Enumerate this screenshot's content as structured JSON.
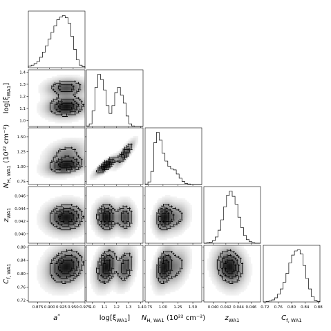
{
  "chart_data": {
    "type": "corner",
    "params": [
      {
        "name": "a*",
        "label_main": "a",
        "label_sup": "*",
        "label_sub": "",
        "label_tail": "",
        "range": [
          0.855,
          0.975
        ],
        "ticks": [
          "0.875",
          "0.900",
          "0.925",
          "0.950",
          "0.975"
        ],
        "tick_values": [
          0.875,
          0.9,
          0.925,
          0.95,
          0.975
        ],
        "hist": [
          0.03,
          0.05,
          0.08,
          0.12,
          0.2,
          0.3,
          0.42,
          0.55,
          0.68,
          0.8,
          0.92,
          0.97,
          1.0,
          0.96,
          0.85,
          0.6,
          0.35,
          0.15,
          0.05,
          0.02
        ],
        "modes": [
          {
            "mu": 0.935,
            "sd": 0.016,
            "w": 1
          }
        ]
      },
      {
        "name": "log[xi_WA1]",
        "label_main": "log[ξ",
        "label_sup": "",
        "label_sub": "WA1",
        "label_tail": "]",
        "range": [
          0.95,
          1.42
        ],
        "ticks": [
          "1.0",
          "1.1",
          "1.2",
          "1.3",
          "1.4"
        ],
        "tick_values": [
          1.0,
          1.1,
          1.2,
          1.3,
          1.4
        ],
        "hist": [
          0.01,
          0.05,
          0.3,
          0.75,
          1.0,
          0.9,
          0.7,
          0.4,
          0.25,
          0.4,
          0.65,
          0.75,
          0.6,
          0.45,
          0.2,
          0.05,
          0.01,
          0,
          0,
          0
        ],
        "modes": [
          {
            "mu": 1.115,
            "sd": 0.035,
            "w": 1.0
          },
          {
            "mu": 1.27,
            "sd": 0.03,
            "w": 0.7
          }
        ]
      },
      {
        "name": "N_H,WA1",
        "label_main": "N",
        "label_sup": "",
        "label_sub": "H, WA1",
        "label_tail": " (10²² cm⁻²)",
        "range": [
          0.7,
          1.65
        ],
        "ticks": [
          "0.75",
          "1.00",
          "1.25",
          "1.50"
        ],
        "tick_values": [
          0.75,
          1.0,
          1.25,
          1.5
        ],
        "hist": [
          0.01,
          0.05,
          0.25,
          0.8,
          1.0,
          0.85,
          0.6,
          0.45,
          0.35,
          0.3,
          0.28,
          0.2,
          0.12,
          0.06,
          0.02,
          0.01,
          0,
          0,
          0,
          0
        ],
        "modes": [
          {
            "mu": 1.02,
            "sd": 0.06,
            "w": 1.0
          },
          {
            "mu": 1.22,
            "sd": 0.08,
            "w": 0.45
          }
        ]
      },
      {
        "name": "z_WA1",
        "label_main": "z",
        "label_sup": "",
        "label_sub": "WA1",
        "label_tail": "",
        "range": [
          0.0385,
          0.0475
        ],
        "ticks": [
          "0.040",
          "0.042",
          "0.044",
          "0.046"
        ],
        "tick_values": [
          0.04,
          0.042,
          0.044,
          0.046
        ],
        "hist": [
          0,
          0.01,
          0.02,
          0.05,
          0.12,
          0.25,
          0.45,
          0.7,
          0.92,
          1.0,
          0.9,
          0.75,
          0.5,
          0.3,
          0.15,
          0.07,
          0.03,
          0.01,
          0,
          0
        ],
        "modes": [
          {
            "mu": 0.0426,
            "sd": 0.0009,
            "w": 1
          }
        ]
      },
      {
        "name": "C_f,WA1",
        "label_main": "C",
        "label_sup": "",
        "label_sub": "f, WA1",
        "label_tail": "",
        "range": [
          0.715,
          0.885
        ],
        "ticks": [
          "0.72",
          "0.76",
          "0.80",
          "0.84",
          "0.88"
        ],
        "tick_values": [
          0.72,
          0.76,
          0.8,
          0.84,
          0.88
        ],
        "hist": [
          0,
          0.01,
          0.02,
          0.04,
          0.08,
          0.15,
          0.25,
          0.38,
          0.55,
          0.75,
          0.9,
          0.98,
          1.0,
          0.92,
          0.7,
          0.45,
          0.25,
          0.1,
          0.03,
          0.01
        ],
        "modes": [
          {
            "mu": 0.82,
            "sd": 0.022,
            "w": 1
          }
        ]
      }
    ],
    "pairs": [
      {
        "row": 1,
        "col": 0,
        "corr": 0.1
      },
      {
        "row": 2,
        "col": 0,
        "corr": 0.3
      },
      {
        "row": 2,
        "col": 1,
        "corr": 0.85
      },
      {
        "row": 3,
        "col": 0,
        "corr": 0.05
      },
      {
        "row": 3,
        "col": 1,
        "corr": 0.0
      },
      {
        "row": 3,
        "col": 2,
        "corr": 0.2
      },
      {
        "row": 4,
        "col": 0,
        "corr": 0.2
      },
      {
        "row": 4,
        "col": 1,
        "corr": 0.3
      },
      {
        "row": 4,
        "col": 2,
        "corr": 0.35
      },
      {
        "row": 4,
        "col": 3,
        "corr": -0.1
      }
    ],
    "contour_levels": [
      0.3,
      0.55,
      0.8
    ]
  }
}
